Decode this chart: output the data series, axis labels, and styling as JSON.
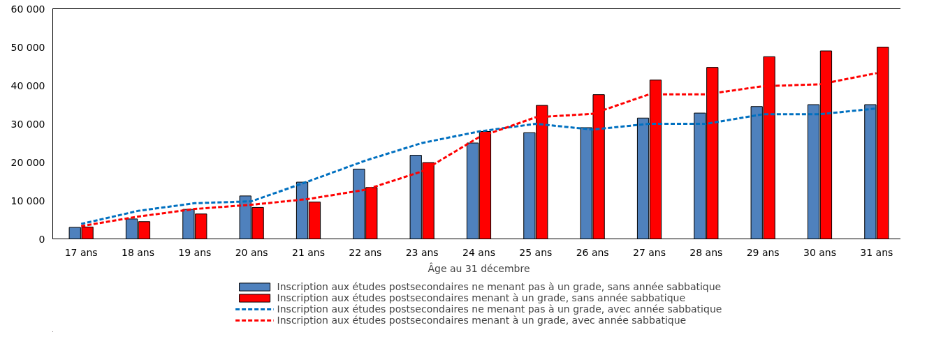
{
  "chart_data": {
    "type": "bar",
    "xlabel": "Âge au 31 décembre",
    "categories": [
      "17 ans",
      "18 ans",
      "19 ans",
      "20 ans",
      "21 ans",
      "22 ans",
      "23 ans",
      "24 ans",
      "25 ans",
      "26 ans",
      "27 ans",
      "28 ans",
      "29 ans",
      "30 ans",
      "31 ans"
    ],
    "ylim": [
      0,
      60000
    ],
    "yticks": [
      {
        "value": 0,
        "label": "0"
      },
      {
        "value": 10000,
        "label": "10 000"
      },
      {
        "value": 20000,
        "label": "20 000"
      },
      {
        "value": 30000,
        "label": "30 000"
      },
      {
        "value": 40000,
        "label": "40 000"
      },
      {
        "value": 50000,
        "label": "50 000"
      },
      {
        "value": 60000,
        "label": "60 000"
      }
    ],
    "grid": false,
    "legend": "bottom",
    "series": [
      {
        "name": "Inscription aux études postsecondaires ne menant pas à un grade, sans année sabbatique",
        "color": "#4f81bd",
        "values": [
          3000,
          5200,
          7700,
          11200,
          14800,
          18200,
          21800,
          25000,
          27700,
          29000,
          31500,
          32800,
          34500,
          35000,
          35000
        ]
      },
      {
        "name": "Inscription aux études postsecondaires menant à un grade, sans année sabbatique",
        "color": "#ff0000",
        "values": [
          3100,
          4500,
          6500,
          8200,
          9600,
          13400,
          19900,
          28000,
          34800,
          37600,
          41400,
          44700,
          47500,
          49000,
          50000
        ]
      },
      {
        "name": "Inscription aux études postsecondaires ne menant pas à un grade, avec année sabbatique",
        "type": "line",
        "line_style": "dashed",
        "color": "#0070c0",
        "values": [
          3900,
          7300,
          9300,
          9800,
          15000,
          20400,
          25000,
          28000,
          30000,
          28500,
          30000,
          30000,
          32500,
          32500,
          34000
        ]
      },
      {
        "name": "Inscription aux études postsecondaires menant à un grade, avec année sabbatique",
        "type": "line",
        "line_style": "dashed",
        "color": "#ff0000",
        "values": [
          3300,
          5800,
          7800,
          8900,
          10400,
          12800,
          17600,
          26500,
          31700,
          32600,
          37700,
          37700,
          39800,
          40300,
          43200
        ]
      }
    ]
  }
}
